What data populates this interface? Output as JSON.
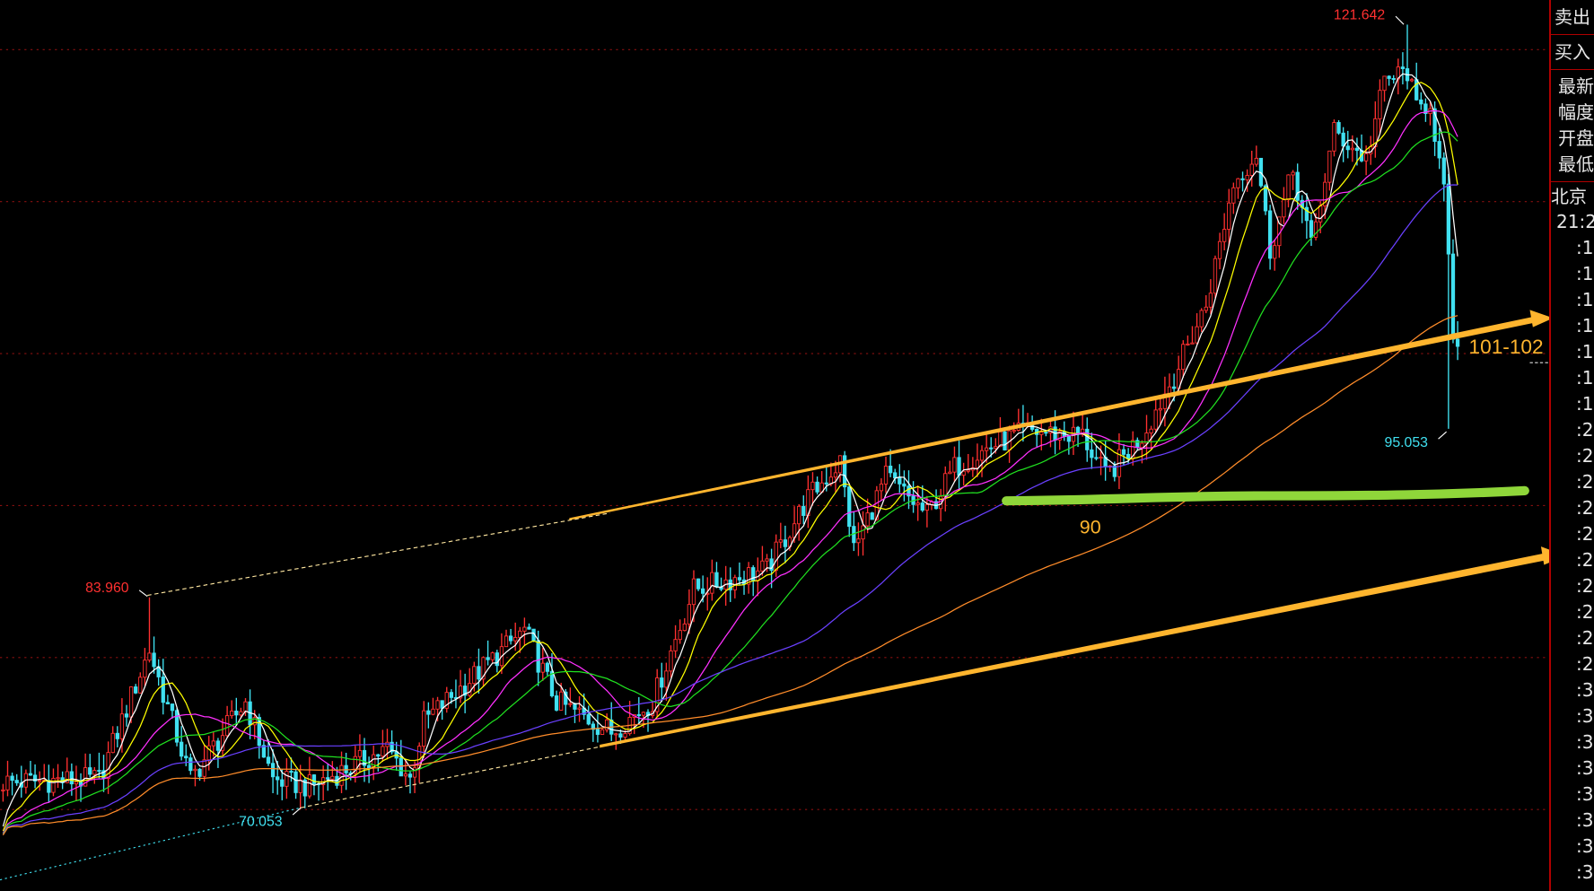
{
  "chart_data": {
    "type": "candlestick",
    "title": "",
    "xlabel": "",
    "ylabel": "",
    "ylim": [
      67,
      123
    ],
    "grid_prices": [
      70,
      80,
      90,
      100,
      110,
      120
    ],
    "grid": true,
    "up_color": "#ff3030",
    "down_color": "#40e0f0",
    "moving_averages": [
      {
        "period": 5,
        "color": "#ffffff"
      },
      {
        "period": 10,
        "color": "#ffff00"
      },
      {
        "period": 20,
        "color": "#ff30ff"
      },
      {
        "period": 30,
        "color": "#20e020"
      },
      {
        "period": 60,
        "color": "#6a40ff"
      },
      {
        "period": 120,
        "color": "#ff8c2a"
      }
    ],
    "close_path": [
      [
        0,
        71.8
      ],
      [
        21,
        72
      ],
      [
        32,
        80.5
      ],
      [
        41,
        72
      ],
      [
        53,
        77.1
      ],
      [
        59,
        72
      ],
      [
        67,
        71.5
      ],
      [
        84,
        74
      ],
      [
        89,
        72
      ],
      [
        92,
        75.8
      ],
      [
        114,
        81.8
      ],
      [
        121,
        77.1
      ],
      [
        133,
        75.1
      ],
      [
        142,
        77.1
      ],
      [
        151,
        84.5
      ],
      [
        167,
        85.8
      ],
      [
        176,
        90.5
      ],
      [
        183,
        92.9
      ],
      [
        186,
        87.1
      ],
      [
        193,
        91.9
      ],
      [
        202,
        89.4
      ],
      [
        208,
        92.5
      ],
      [
        216,
        93.9
      ],
      [
        224,
        94.9
      ],
      [
        236,
        94.6
      ],
      [
        241,
        91.9
      ],
      [
        249,
        94.6
      ],
      [
        256,
        98.5
      ],
      [
        263,
        103.2
      ],
      [
        269,
        111.2
      ],
      [
        274,
        113.2
      ],
      [
        277,
        106.8
      ],
      [
        282,
        112
      ],
      [
        286,
        107
      ],
      [
        291,
        114.6
      ],
      [
        298,
        112.8
      ],
      [
        302,
        117.9
      ],
      [
        307,
        118.6
      ],
      [
        309,
        116
      ],
      [
        312,
        116.6
      ],
      [
        315,
        110.5
      ],
      [
        317,
        101.2
      ],
      [
        318,
        100
      ]
    ],
    "extremes": [
      {
        "label": "121.642",
        "price": 121.642,
        "bar": 307,
        "kind": "high",
        "color": "#ff3030"
      },
      {
        "label": "83.960",
        "price": 83.96,
        "bar": 32,
        "kind": "high",
        "color": "#ff3030"
      },
      {
        "label": "70.053",
        "price": 70.053,
        "bar": 65,
        "kind": "low",
        "color": "#40e0f0"
      },
      {
        "label": "95.053",
        "price": 95.053,
        "bar": 316,
        "kind": "low",
        "color": "#40e0f0"
      }
    ],
    "annotations": [
      {
        "label": "101-102",
        "color": "#ffb52e"
      },
      {
        "label": "90",
        "color": "#ffb52e"
      }
    ],
    "trendline_color": "#ffb52e",
    "support_line_color": "#8fd63a"
  },
  "panel": {
    "sell": "卖出",
    "buy": "买入",
    "info": [
      "最新",
      "幅度",
      "开盘",
      "最低"
    ],
    "city": "北京",
    "time": "21:2",
    "ticks": [
      ":1",
      ":1",
      ":1",
      ":1",
      ":1",
      ":1",
      ":1",
      ":2",
      ":2",
      ":2",
      ":2",
      ":2",
      ":2",
      ":2",
      ":2",
      ":2",
      ":2",
      ":3",
      ":3",
      ":3",
      ":3",
      ":3",
      ":3",
      ":3",
      ":3"
    ]
  }
}
